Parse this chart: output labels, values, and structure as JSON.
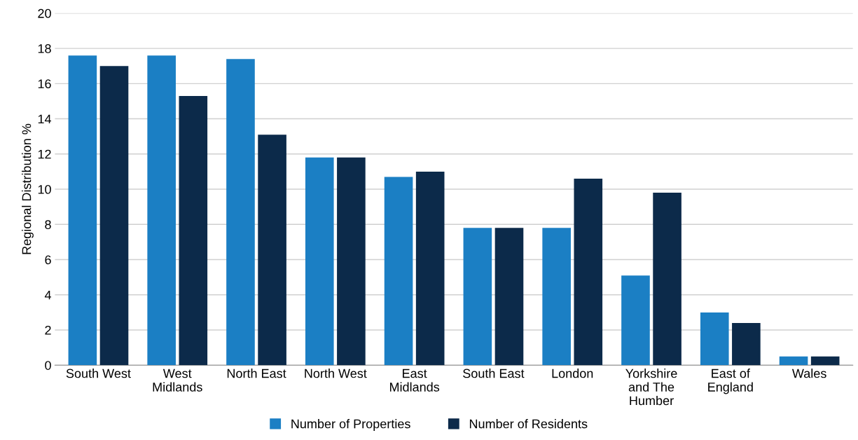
{
  "chart_data": {
    "type": "bar",
    "ylabel": "Regional Distribution %",
    "categories": [
      "South West",
      "West\nMidlands",
      "North East",
      "North West",
      "East\nMidlands",
      "South East",
      "London",
      "Yorkshire\nand The\nHumber",
      "East of\nEngland",
      "Wales"
    ],
    "series": [
      {
        "name": "Number of Properties",
        "color": "#1b7fc4",
        "values": [
          17.6,
          17.6,
          17.4,
          11.8,
          10.7,
          7.8,
          7.8,
          5.1,
          3.0,
          0.5
        ]
      },
      {
        "name": "Number of Residents",
        "color": "#0c2a4a",
        "values": [
          17.0,
          15.3,
          13.1,
          11.8,
          11.0,
          7.8,
          10.6,
          9.8,
          2.4,
          0.5
        ]
      }
    ],
    "ylim": [
      0,
      20
    ],
    "yticks": [
      0,
      2,
      4,
      6,
      8,
      10,
      12,
      14,
      16,
      18,
      20
    ],
    "grid": "y",
    "legend": "bottom"
  }
}
